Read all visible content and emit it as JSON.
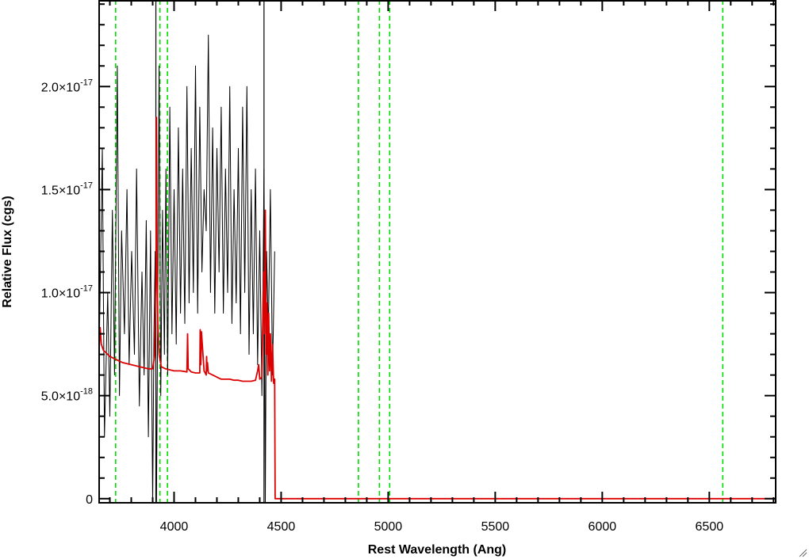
{
  "chart_data": {
    "type": "line",
    "title": "",
    "xlabel": "Rest Wavelength (Ang)",
    "ylabel": "Relative Flux (cgs)",
    "xlim": [
      3650,
      6810
    ],
    "ylim": [
      -2e-19,
      2.42e-17
    ],
    "x_ticks": [
      {
        "value": 4000,
        "label": "4000"
      },
      {
        "value": 4500,
        "label": "4500"
      },
      {
        "value": 5000,
        "label": "5000"
      },
      {
        "value": 5500,
        "label": "5500"
      },
      {
        "value": 6000,
        "label": "6000"
      },
      {
        "value": 6500,
        "label": "6500"
      }
    ],
    "y_ticks": [
      {
        "value": 0,
        "label": "0",
        "exp": ""
      },
      {
        "value": 5e-18,
        "label": "5.0×10",
        "exp": "-18"
      },
      {
        "value": 1e-17,
        "label": "1.0×10",
        "exp": "-17"
      },
      {
        "value": 1.5e-17,
        "label": "1.5×10",
        "exp": "-17"
      },
      {
        "value": 2e-17,
        "label": "2.0×10",
        "exp": "-17"
      }
    ],
    "series": [
      {
        "color": "#000000",
        "description": "observed spectrum (noisy), approximated",
        "x": [
          3650,
          3665,
          3675,
          3690,
          3700,
          3712,
          3722,
          3735,
          3745,
          3755,
          3768,
          3780,
          3790,
          3802,
          3815,
          3825,
          3838,
          3850,
          3860,
          3870,
          3880,
          3890,
          3900,
          3906,
          3912,
          3918,
          3924,
          3930,
          3938,
          3946,
          3955,
          3962,
          3970,
          3980,
          3990,
          4000,
          4010,
          4020,
          4030,
          4040,
          4050,
          4060,
          4070,
          4080,
          4090,
          4100,
          4110,
          4120,
          4130,
          4140,
          4150,
          4160,
          4170,
          4180,
          4190,
          4200,
          4210,
          4220,
          4230,
          4240,
          4250,
          4260,
          4270,
          4280,
          4290,
          4300,
          4310,
          4320,
          4330,
          4340,
          4350,
          4360,
          4370,
          4380,
          4390,
          4400,
          4410,
          4420,
          4426,
          4432,
          4440,
          4450,
          4460,
          4470
        ],
        "y": [
          7e-18,
          1.7e-17,
          3e-18,
          1e-17,
          4e-18,
          1.4e-17,
          6e-18,
          2.1e-17,
          5e-18,
          1.3e-17,
          8e-18,
          1.5e-17,
          6.5e-18,
          1.2e-17,
          7e-18,
          1.6e-17,
          4.5e-18,
          1.1e-17,
          6e-18,
          1.35e-17,
          3e-18,
          1.3e-17,
          -2e-19,
          8e-18,
          1.2e-17,
          -2e-19,
          1e-17,
          2.1e-17,
          5e-18,
          1.4e-17,
          7e-18,
          1.6e-17,
          6e-18,
          1.9e-17,
          8e-18,
          1.5e-17,
          7.5e-18,
          1.8e-17,
          9e-18,
          1.6e-17,
          8.5e-18,
          2e-17,
          9.5e-18,
          1.7e-17,
          1e-17,
          2.1e-17,
          9e-18,
          1.9e-17,
          1.1e-17,
          1.5e-17,
          1.3e-17,
          2.25e-17,
          1e-17,
          1.8e-17,
          9e-18,
          1.7e-17,
          1.1e-17,
          1.9e-17,
          9e-18,
          1.6e-17,
          1e-17,
          2e-17,
          8.5e-18,
          1.5e-17,
          9.5e-18,
          1.7e-17,
          8e-18,
          1.9e-17,
          1e-17,
          2e-17,
          7e-18,
          1.5e-17,
          8e-18,
          1.6e-17,
          6.5e-18,
          1.3e-17,
          5e-18,
          1.6e-17,
          -2e-19,
          1.2e-17,
          8e-18,
          1.5e-17,
          6e-18,
          1.2e-17
        ]
      },
      {
        "color": "#dd0000",
        "description": "model / continuum fit, approximated",
        "x": [
          3650,
          3655,
          3660,
          3670,
          3680,
          3690,
          3700,
          3720,
          3740,
          3760,
          3780,
          3800,
          3820,
          3840,
          3860,
          3880,
          3900,
          3910,
          3916,
          3918,
          3920,
          3924,
          3930,
          3940,
          3960,
          3980,
          4000,
          4030,
          4060,
          4063,
          4066,
          4080,
          4100,
          4120,
          4122,
          4125,
          4128,
          4140,
          4150,
          4152,
          4154,
          4156,
          4160,
          4180,
          4200,
          4220,
          4240,
          4260,
          4280,
          4300,
          4320,
          4340,
          4360,
          4380,
          4390,
          4395,
          4400,
          4410,
          4418,
          4422,
          4426,
          4430,
          4434,
          4438,
          4442,
          4446,
          4450,
          4455,
          4460,
          4465,
          4470,
          4472,
          4474,
          4480,
          4600,
          5000,
          6000,
          6810
        ],
        "y": [
          7.3e-18,
          8.3e-18,
          7.5e-18,
          7.2e-18,
          7.1e-18,
          7e-18,
          6.9e-18,
          6.8e-18,
          6.7e-18,
          6.6e-18,
          6.55e-18,
          6.5e-18,
          6.45e-18,
          6.4e-18,
          6.35e-18,
          6.3e-18,
          6.3e-18,
          7e-18,
          1.1e-17,
          1.85e-17,
          1.2e-17,
          8.5e-18,
          7e-18,
          6.4e-18,
          6.3e-18,
          6.25e-18,
          6.2e-18,
          6.2e-18,
          6.15e-18,
          8e-18,
          6.3e-18,
          6.15e-18,
          6.1e-18,
          6.1e-18,
          8.2e-18,
          6.5e-18,
          8.1e-18,
          6.2e-18,
          6e-18,
          6.9e-18,
          6.2e-18,
          6.6e-18,
          6.1e-18,
          6e-18,
          5.9e-18,
          5.8e-18,
          5.8e-18,
          5.8e-18,
          5.75e-18,
          5.75e-18,
          5.7e-18,
          5.7e-18,
          5.7e-18,
          5.75e-18,
          6.2e-18,
          6.5e-18,
          5.8e-18,
          5.9e-18,
          1.1e-17,
          8e-18,
          1.4e-17,
          7e-18,
          9.5e-18,
          6e-18,
          9e-18,
          6.2e-18,
          8e-18,
          5.7e-18,
          7.5e-18,
          5.6e-18,
          5.8e-18,
          0,
          0,
          0,
          0,
          0,
          0,
          0
        ]
      }
    ],
    "vertical_lines": [
      {
        "x": 3727,
        "style": "dashed",
        "color": "#00dd00"
      },
      {
        "x": 3934,
        "style": "dashed",
        "color": "#00dd00"
      },
      {
        "x": 3969,
        "style": "dashed",
        "color": "#00dd00"
      },
      {
        "x": 4861,
        "style": "dashed",
        "color": "#00dd00"
      },
      {
        "x": 4959,
        "style": "dashed",
        "color": "#00dd00"
      },
      {
        "x": 5007,
        "style": "dashed",
        "color": "#00dd00"
      },
      {
        "x": 6563,
        "style": "dashed",
        "color": "#00dd00"
      },
      {
        "x": 3915,
        "style": "solid",
        "color": "#000000"
      },
      {
        "x": 4420,
        "style": "solid",
        "color": "#000000"
      }
    ],
    "grid": false,
    "legend": "none"
  }
}
